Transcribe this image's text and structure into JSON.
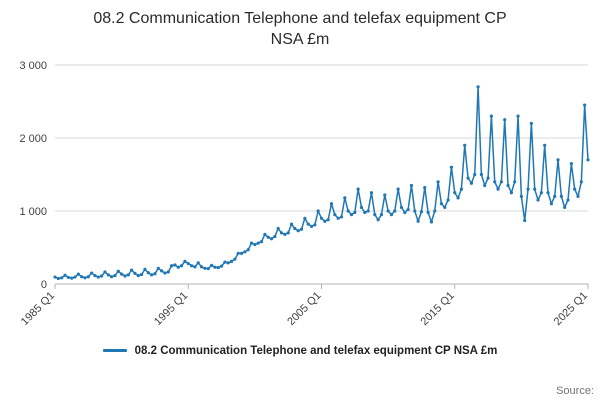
{
  "title_lines": {
    "0": "08.2 Communication Telephone and telefax equipment CP",
    "1": "NSA £m"
  },
  "source_label": "Source:",
  "colors": {
    "series": "#1f77b4",
    "grid": "#d9d9d9",
    "axis": "#b3b3b3",
    "tick_text": "#414042",
    "title_text": "#2b2b2b"
  },
  "chart_data": {
    "type": "line",
    "title": "08.2 Communication Telephone and telefax equipment CP NSA £m",
    "x_start": "1985 Q1",
    "x_end": "2025 Q1",
    "frequency": "quarterly",
    "x_tick_labels": [
      "1985 Q1",
      "1995 Q1",
      "2005 Q1",
      "2015 Q1",
      "2025 Q1"
    ],
    "x_tick_indices": [
      0,
      40,
      80,
      120,
      160
    ],
    "y_ticks": [
      0,
      1000,
      2000,
      3000
    ],
    "y_tick_labels": [
      "0",
      "1 000",
      "2 000",
      "3 000"
    ],
    "ylim": [
      0,
      3000
    ],
    "grid": "horizontal",
    "legend_position": "bottom",
    "markers": true,
    "series": [
      {
        "name": "08.2 Communication Telephone and telefax equipment CP NSA £m",
        "color": "#1f77b4",
        "values": [
          95,
          75,
          85,
          120,
          90,
          80,
          95,
          135,
          100,
          85,
          100,
          150,
          115,
          95,
          110,
          165,
          125,
          100,
          115,
          175,
          135,
          110,
          125,
          190,
          145,
          115,
          130,
          200,
          155,
          125,
          140,
          215,
          180,
          150,
          165,
          250,
          260,
          230,
          250,
          310,
          280,
          250,
          235,
          290,
          235,
          215,
          210,
          255,
          230,
          225,
          245,
          300,
          290,
          310,
          340,
          420,
          420,
          440,
          470,
          560,
          540,
          560,
          580,
          680,
          640,
          620,
          650,
          760,
          700,
          680,
          700,
          820,
          760,
          730,
          750,
          900,
          820,
          790,
          810,
          1000,
          900,
          860,
          880,
          1100,
          950,
          900,
          920,
          1180,
          1000,
          950,
          980,
          1300,
          1050,
          980,
          1000,
          1250,
          950,
          880,
          950,
          1220,
          1000,
          950,
          1000,
          1300,
          1050,
          980,
          1020,
          1350,
          1000,
          860,
          990,
          1320,
          980,
          850,
          1000,
          1400,
          1100,
          1050,
          1150,
          1600,
          1250,
          1180,
          1300,
          1900,
          1450,
          1380,
          1500,
          2700,
          1500,
          1350,
          1450,
          2300,
          1400,
          1300,
          1400,
          2250,
          1350,
          1250,
          1400,
          2300,
          1200,
          870,
          1300,
          2200,
          1300,
          1150,
          1250,
          1900,
          1250,
          1100,
          1200,
          1700,
          1200,
          1050,
          1150,
          1650,
          1300,
          1200,
          1400,
          2450,
          1700
        ]
      }
    ]
  }
}
